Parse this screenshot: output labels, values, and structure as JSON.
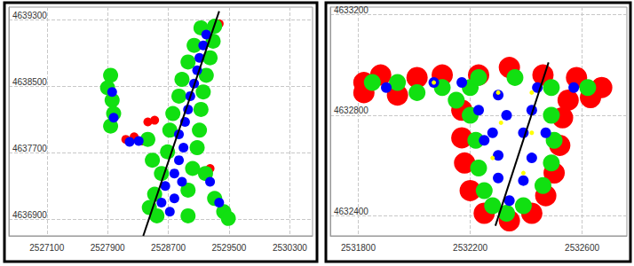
{
  "chart_data": [
    {
      "type": "scatter",
      "xlim": [
        2526600,
        2530600
      ],
      "ylim": [
        4636700,
        4639450
      ],
      "xticks": [
        2527100,
        2527900,
        2528700,
        2529500,
        2530300
      ],
      "yticks": [
        4636900,
        4637700,
        4638500,
        4639300
      ],
      "grid": true,
      "series": [
        {
          "type": "scatter",
          "color": "#ff0000",
          "values": [
            [
              2528140,
              4637860
            ],
            [
              2528250,
              4637890
            ],
            [
              2528370,
              4637840
            ],
            [
              2528430,
              4638070
            ],
            [
              2528520,
              4638090
            ],
            [
              2529250,
              4637510
            ],
            [
              2529370,
              4639250
            ]
          ]
        },
        {
          "type": "scatter",
          "color": "#11e011",
          "values": [
            [
              2528550,
              4636940
            ],
            [
              2528960,
              4636940
            ],
            [
              2528520,
              4637200
            ],
            [
              2528960,
              4637250
            ],
            [
              2528610,
              4637450
            ],
            [
              2529020,
              4637510
            ],
            [
              2528690,
              4637710
            ],
            [
              2529080,
              4637760
            ],
            [
              2528720,
              4637970
            ],
            [
              2529110,
              4637970
            ],
            [
              2528760,
              4638170
            ],
            [
              2529130,
              4638220
            ],
            [
              2528840,
              4638380
            ],
            [
              2529160,
              4638430
            ],
            [
              2528880,
              4638580
            ],
            [
              2529200,
              4638630
            ],
            [
              2528960,
              4638790
            ],
            [
              2529250,
              4638840
            ],
            [
              2529040,
              4638990
            ],
            [
              2529290,
              4639040
            ],
            [
              2529130,
              4639200
            ],
            [
              2529310,
              4639220
            ],
            [
              2528450,
              4637040
            ],
            [
              2528490,
              4637610
            ],
            [
              2528430,
              4637860
            ],
            [
              2527940,
              4638630
            ],
            [
              2527900,
              4638480
            ],
            [
              2527960,
              4638330
            ],
            [
              2527980,
              4638170
            ],
            [
              2527940,
              4638020
            ],
            [
              2529190,
              4637450
            ],
            [
              2529310,
              4637150
            ],
            [
              2529430,
              4636990
            ],
            [
              2529490,
              4636910
            ]
          ]
        },
        {
          "type": "scatter",
          "color": "#0000ff",
          "values": [
            [
              2528720,
              4636990
            ],
            [
              2528780,
              4637150
            ],
            [
              2528660,
              4637300
            ],
            [
              2528780,
              4637450
            ],
            [
              2528840,
              4637610
            ],
            [
              2528900,
              4637760
            ],
            [
              2528840,
              4637920
            ],
            [
              2528920,
              4638070
            ],
            [
              2528960,
              4638220
            ],
            [
              2528990,
              4638380
            ],
            [
              2529040,
              4638530
            ],
            [
              2529080,
              4638690
            ],
            [
              2529110,
              4638840
            ],
            [
              2529160,
              4638990
            ],
            [
              2529200,
              4639120
            ],
            [
              2528880,
              4637350
            ],
            [
              2528610,
              4637100
            ],
            [
              2527960,
              4638430
            ],
            [
              2527980,
              4638120
            ],
            [
              2528190,
              4637830
            ],
            [
              2528310,
              4637840
            ],
            [
              2529250,
              4637350
            ],
            [
              2529370,
              4637100
            ]
          ]
        },
        {
          "type": "line",
          "color": "#000000",
          "values": [
            [
              2528370,
              4636700
            ],
            [
              2529370,
              4639400
            ]
          ]
        }
      ]
    },
    {
      "type": "scatter",
      "xlim": [
        2531700,
        2532760
      ],
      "ylim": [
        4632320,
        4633230
      ],
      "xticks": [
        2531800,
        2532200,
        2532600
      ],
      "yticks": [
        4632400,
        4632800,
        4633200
      ],
      "grid": true,
      "series": [
        {
          "type": "scatter",
          "color": "#ff0000",
          "values": [
            [
              2531820,
              4632930
            ],
            [
              2531880,
              4632960
            ],
            [
              2532010,
              4632950
            ],
            [
              2532100,
              4632960
            ],
            [
              2532230,
              4632960
            ],
            [
              2532340,
              4632990
            ],
            [
              2532460,
              4632960
            ],
            [
              2532580,
              4632950
            ],
            [
              2532670,
              4632910
            ],
            [
              2532630,
              4632870
            ],
            [
              2532550,
              4632860
            ],
            [
              2531940,
              4632880
            ],
            [
              2531820,
              4632890
            ],
            [
              2532530,
              4632790
            ],
            [
              2532520,
              4632680
            ],
            [
              2532500,
              4632570
            ],
            [
              2532470,
              4632480
            ],
            [
              2532420,
              4632410
            ],
            [
              2532340,
              4632380
            ],
            [
              2532250,
              4632410
            ],
            [
              2532200,
              4632500
            ],
            [
              2532180,
              4632610
            ],
            [
              2532170,
              4632710
            ],
            [
              2532170,
              4632820
            ]
          ]
        },
        {
          "type": "scatter",
          "color": "#11e011",
          "values": [
            [
              2531850,
              4632930
            ],
            [
              2531940,
              4632930
            ],
            [
              2532010,
              4632890
            ],
            [
              2532100,
              4632910
            ],
            [
              2532200,
              4632910
            ],
            [
              2532230,
              4632950
            ],
            [
              2532360,
              4632950
            ],
            [
              2532490,
              4632910
            ],
            [
              2532620,
              4632910
            ],
            [
              2532150,
              4632860
            ],
            [
              2532200,
              4632800
            ],
            [
              2532490,
              4632800
            ],
            [
              2532220,
              4632700
            ],
            [
              2532500,
              4632700
            ],
            [
              2532230,
              4632590
            ],
            [
              2532490,
              4632610
            ],
            [
              2532250,
              4632500
            ],
            [
              2532460,
              4632520
            ],
            [
              2532280,
              4632440
            ],
            [
              2532390,
              4632440
            ],
            [
              2532330,
              4632410
            ]
          ]
        },
        {
          "type": "scatter",
          "color": "#0000ff",
          "values": [
            [
              2531900,
              4632910
            ],
            [
              2532070,
              4632930
            ],
            [
              2532170,
              4632930
            ],
            [
              2532300,
              4632880
            ],
            [
              2532440,
              4632910
            ],
            [
              2532570,
              4632910
            ],
            [
              2532230,
              4632820
            ],
            [
              2532330,
              4632800
            ],
            [
              2532420,
              4632820
            ],
            [
              2532280,
              4632730
            ],
            [
              2532390,
              4632730
            ],
            [
              2532470,
              4632730
            ],
            [
              2532300,
              4632640
            ],
            [
              2532420,
              4632630
            ],
            [
              2532300,
              4632550
            ],
            [
              2532390,
              4632540
            ],
            [
              2532340,
              4632460
            ],
            [
              2532250,
              4632700
            ]
          ]
        },
        {
          "type": "scatter",
          "color": "#ffff00",
          "values": [
            [
              2532070,
              4632930
            ],
            [
              2532300,
              4632890
            ],
            [
              2532420,
              4632890
            ],
            [
              2532310,
              4632770
            ],
            [
              2532420,
              4632730
            ],
            [
              2532280,
              4632630
            ],
            [
              2532390,
              4632570
            ]
          ]
        },
        {
          "type": "line",
          "color": "#000000",
          "values": [
            [
              2532290,
              4632360
            ],
            [
              2532480,
              4633010
            ]
          ]
        }
      ]
    }
  ]
}
